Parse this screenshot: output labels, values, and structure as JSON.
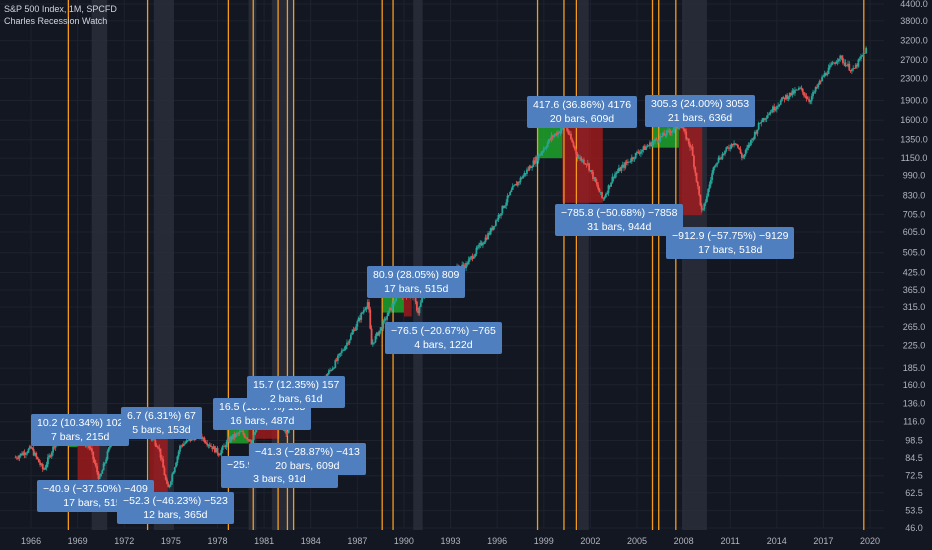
{
  "header": {
    "symbol_line": "S&P 500 Index, 1M, SPCFD",
    "indicator": "Charles Recession Watch"
  },
  "chart_data": {
    "type": "candlestick",
    "scale": "log",
    "x_ticks": [
      "1966",
      "1969",
      "1972",
      "1975",
      "1978",
      "1981",
      "1984",
      "1987",
      "1990",
      "1993",
      "1996",
      "1999",
      "2002",
      "2005",
      "2008",
      "2011",
      "2014",
      "2017",
      "2020"
    ],
    "y_ticks": [
      "4400.0",
      "3800.0",
      "3200.0",
      "2700.0",
      "2300.0",
      "1900.0",
      "1600.0",
      "1350.0",
      "1150.0",
      "990.0",
      "830.0",
      "705.0",
      "605.0",
      "505.0",
      "425.0",
      "365.0",
      "315.0",
      "265.0",
      "225.0",
      "185.0",
      "160.0",
      "136.0",
      "116.0",
      "98.5",
      "84.5",
      "72.5",
      "62.5",
      "53.5",
      "46.0"
    ],
    "ylim": [
      46,
      4400
    ],
    "recession_shading": [
      [
        1969.9,
        1970.9
      ],
      [
        1973.9,
        1975.2
      ],
      [
        1980.0,
        1980.5
      ],
      [
        1981.5,
        1982.9
      ],
      [
        1990.6,
        1991.2
      ],
      [
        2001.2,
        2001.9
      ],
      [
        2007.9,
        2009.5
      ]
    ],
    "orange_markers": [
      1968.4,
      1973.5,
      1978.7,
      1980.3,
      1981.9,
      1982.5,
      1982.9,
      1988.6,
      1989.3,
      1998.6,
      2000.3,
      2001.1,
      2006.0,
      2006.4,
      2007.5,
      2019.6
    ],
    "price_path": [
      [
        1965.0,
        85
      ],
      [
        1966.0,
        92
      ],
      [
        1966.8,
        76
      ],
      [
        1967.5,
        95
      ],
      [
        1968.9,
        106
      ],
      [
        1969.8,
        92
      ],
      [
        1970.4,
        70
      ],
      [
        1971.3,
        104
      ],
      [
        1972.9,
        118
      ],
      [
        1973.5,
        104
      ],
      [
        1974.2,
        94
      ],
      [
        1974.8,
        64
      ],
      [
        1975.6,
        94
      ],
      [
        1976.8,
        104
      ],
      [
        1978.1,
        88
      ],
      [
        1978.8,
        100
      ],
      [
        1979.5,
        106
      ],
      [
        1980.2,
        98
      ],
      [
        1980.3,
        100
      ],
      [
        1980.9,
        136
      ],
      [
        1981.7,
        118
      ],
      [
        1982.5,
        106
      ],
      [
        1982.9,
        138
      ],
      [
        1983.5,
        168
      ],
      [
        1984.5,
        158
      ],
      [
        1985.5,
        190
      ],
      [
        1986.5,
        240
      ],
      [
        1987.7,
        332
      ],
      [
        1987.9,
        226
      ],
      [
        1988.6,
        268
      ],
      [
        1989.6,
        352
      ],
      [
        1990.6,
        350
      ],
      [
        1990.9,
        300
      ],
      [
        1991.5,
        390
      ],
      [
        1992.5,
        420
      ],
      [
        1994.0,
        455
      ],
      [
        1995.5,
        600
      ],
      [
        1997.0,
        880
      ],
      [
        1998.6,
        1160
      ],
      [
        1999.5,
        1380
      ],
      [
        2000.4,
        1520
      ],
      [
        2001.2,
        1160
      ],
      [
        2001.8,
        1100
      ],
      [
        2002.8,
        800
      ],
      [
        2003.5,
        990
      ],
      [
        2005.0,
        1200
      ],
      [
        2006.5,
        1380
      ],
      [
        2007.8,
        1540
      ],
      [
        2008.5,
        1250
      ],
      [
        2009.2,
        705
      ],
      [
        2010.0,
        1100
      ],
      [
        2011.3,
        1340
      ],
      [
        2011.8,
        1150
      ],
      [
        2013.0,
        1600
      ],
      [
        2014.5,
        1950
      ],
      [
        2015.5,
        2100
      ],
      [
        2016.1,
        1900
      ],
      [
        2017.0,
        2350
      ],
      [
        2018.0,
        2780
      ],
      [
        2018.9,
        2450
      ],
      [
        2019.8,
        3000
      ]
    ],
    "boxes": [
      {
        "kind": "up",
        "x0": 1968.4,
        "x1": 1969.0,
        "y0": 93,
        "y1": 102
      },
      {
        "kind": "down",
        "x0": 1969.0,
        "x1": 1970.4,
        "y0": 102,
        "y1": 69
      },
      {
        "kind": "up",
        "x0": 1973.2,
        "x1": 1973.6,
        "y0": 108,
        "y1": 118
      },
      {
        "kind": "down",
        "x0": 1973.6,
        "x1": 1974.8,
        "y0": 112,
        "y1": 62
      },
      {
        "kind": "up",
        "x0": 1978.6,
        "x1": 1980.0,
        "y0": 96,
        "y1": 112
      },
      {
        "kind": "down",
        "x0": 1980.0,
        "x1": 1980.3,
        "y0": 112,
        "y1": 98
      },
      {
        "kind": "up",
        "x0": 1980.3,
        "x1": 1980.5,
        "y0": 110,
        "y1": 124
      },
      {
        "kind": "down",
        "x0": 1980.4,
        "x1": 1982.0,
        "y0": 124,
        "y1": 100
      },
      {
        "kind": "up",
        "x0": 1988.6,
        "x1": 1990.0,
        "y0": 300,
        "y1": 360
      },
      {
        "kind": "down",
        "x0": 1990.0,
        "x1": 1990.5,
        "y0": 360,
        "y1": 290
      },
      {
        "kind": "up",
        "x0": 1998.6,
        "x1": 2000.2,
        "y0": 1150,
        "y1": 1500
      },
      {
        "kind": "down",
        "x0": 2000.2,
        "x1": 2002.8,
        "y0": 1500,
        "y1": 780
      },
      {
        "kind": "up",
        "x0": 2006.0,
        "x1": 2007.7,
        "y0": 1260,
        "y1": 1550
      },
      {
        "kind": "down",
        "x0": 2007.7,
        "x1": 2009.2,
        "y0": 1550,
        "y1": 700
      }
    ],
    "annotations": [
      {
        "l1": "10.2 (10.34%) 102",
        "l2": "7 bars, 215d",
        "x": 1966.0,
        "y": 124
      },
      {
        "l1": "6.7 (6.31%) 67",
        "l2": "5 bars, 153d",
        "x": 1971.8,
        "y": 132
      },
      {
        "l1": "16.5 (13.37%) 165",
        "l2": "16 bars, 487d",
        "x": 1977.7,
        "y": 142
      },
      {
        "l1": "15.7 (12.35%) 157",
        "l2": "2 bars, 61d",
        "x": 1979.9,
        "y": 172
      },
      {
        "l1": "80.9 (28.05%) 809",
        "l2": "17 bars, 515d",
        "x": 1987.6,
        "y": 450
      },
      {
        "l1": "417.6 (36.86%) 4176",
        "l2": "20 bars, 609d",
        "x": 1997.9,
        "y": 1970
      },
      {
        "l1": "305.3 (24.00%) 3053",
        "l2": "21 bars, 636d",
        "x": 2005.5,
        "y": 2000
      },
      {
        "l1": "−25.9 (−20.06%) −259",
        "l2": "3 bars, 91d",
        "x": 1978.2,
        "y": 86
      },
      {
        "l1": "−41.3 (−28.87%) −413",
        "l2": "20 bars, 609d",
        "x": 1980.0,
        "y": 96
      },
      {
        "l1": "−76.5 (−20.67%) −765",
        "l2": "4 bars, 122d",
        "x": 1988.8,
        "y": 277
      },
      {
        "l1": "−785.8 (−50.68%) −7858",
        "l2": "31 bars, 944d",
        "x": 1999.7,
        "y": 770
      },
      {
        "l1": "−912.9 (−57.75%) −9129",
        "l2": "17 bars, 518d",
        "x": 2006.9,
        "y": 630
      },
      {
        "l1": "−40.9 (−37.50%) −409",
        "l2": "17 bars, 515d",
        "x": 1966.4,
        "y": 70
      },
      {
        "l1": "−52.3 (−46.23%) −523",
        "l2": "12 bars, 365d",
        "x": 1971.5,
        "y": 63
      }
    ]
  }
}
